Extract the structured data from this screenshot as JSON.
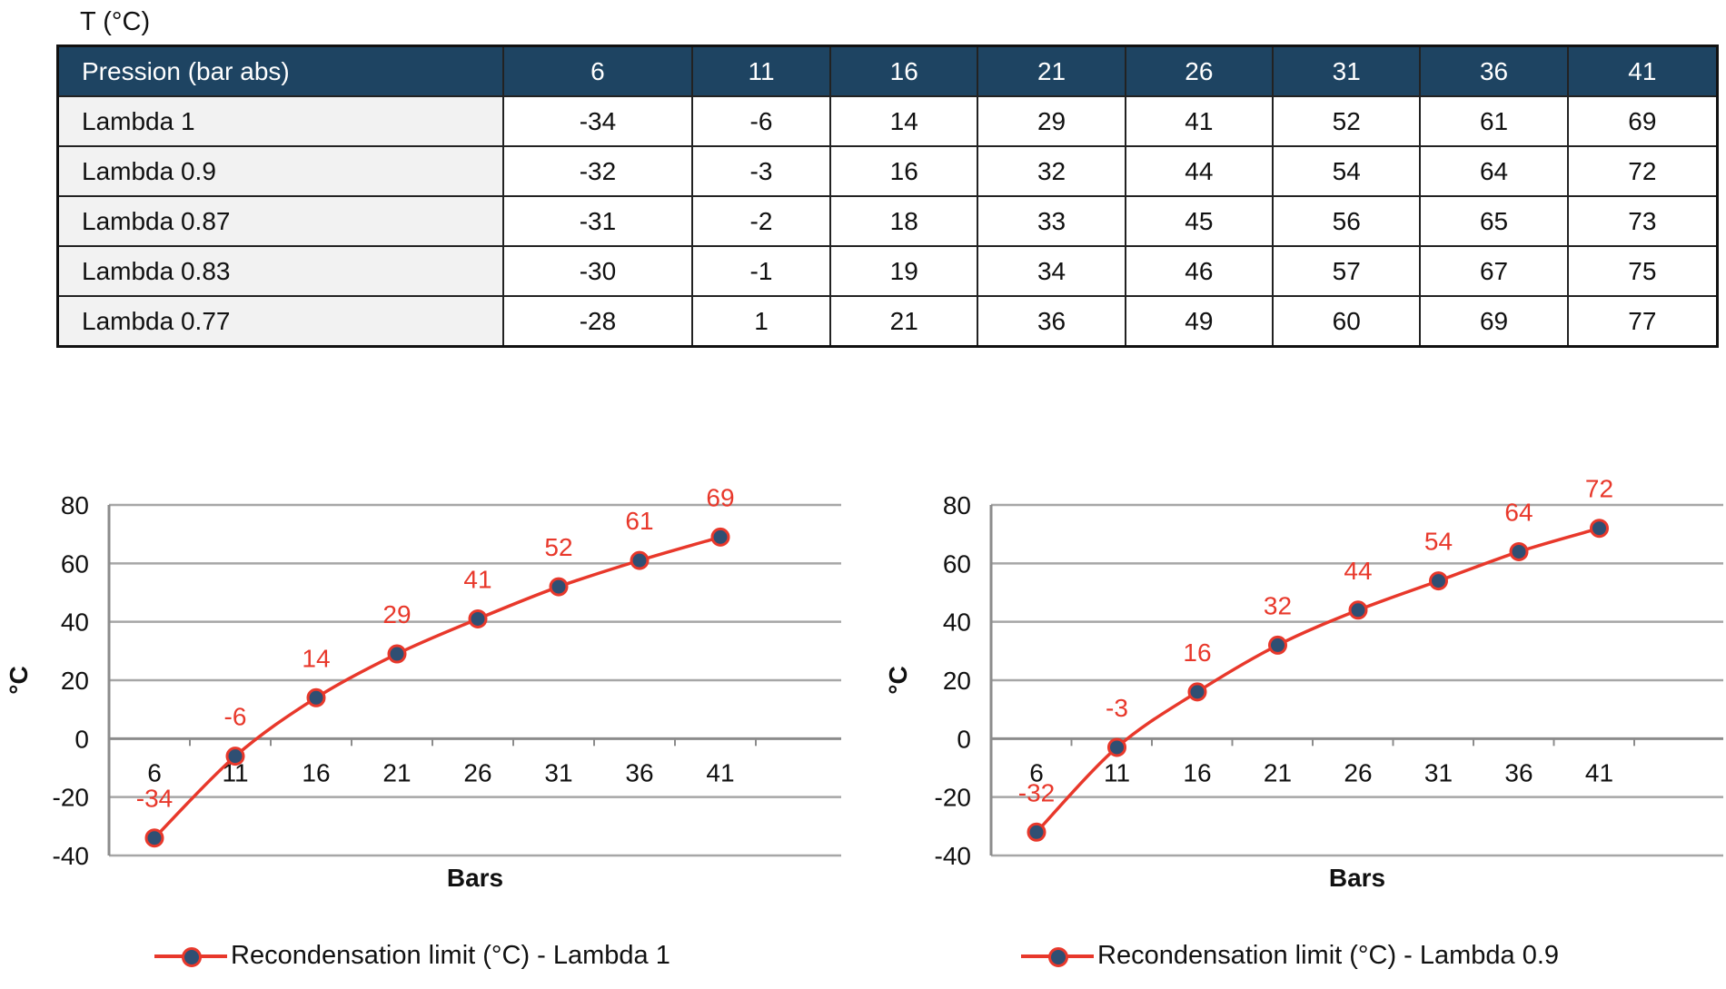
{
  "unit_label": "T (°C)",
  "table": {
    "header": [
      "Pression (bar abs)",
      "6",
      "11",
      "16",
      "21",
      "26",
      "31",
      "36",
      "41"
    ],
    "rows": [
      [
        "Lambda 1",
        "-34",
        "-6",
        "14",
        "29",
        "41",
        "52",
        "61",
        "69"
      ],
      [
        "Lambda 0.9",
        "-32",
        "-3",
        "16",
        "32",
        "44",
        "54",
        "64",
        "72"
      ],
      [
        "Lambda 0.87",
        "-31",
        "-2",
        "18",
        "33",
        "45",
        "56",
        "65",
        "73"
      ],
      [
        "Lambda 0.83",
        "-30",
        "-1",
        "19",
        "34",
        "46",
        "57",
        "67",
        "75"
      ],
      [
        "Lambda 0.77",
        "-28",
        "1",
        "21",
        "36",
        "49",
        "60",
        "69",
        "77"
      ]
    ]
  },
  "colors": {
    "header_bg": "#1e4462",
    "series_line": "#e8382b",
    "marker_fill": "#2f4f73",
    "grid": "#a6a6a6"
  },
  "chart_data": [
    {
      "type": "line",
      "categories": [
        "6",
        "11",
        "16",
        "21",
        "26",
        "31",
        "36",
        "41"
      ],
      "series": [
        {
          "name": "Recondensation limit (°C) - Lambda 1",
          "values": [
            -34,
            -6,
            14,
            29,
            41,
            52,
            61,
            69
          ]
        }
      ],
      "xlabel": "Bars",
      "ylabel": "°C",
      "ylim": [
        -40,
        80
      ],
      "yticks": [
        -40,
        -20,
        0,
        20,
        40,
        60,
        80
      ],
      "data_labels": true,
      "grid": true,
      "legend_position": "bottom"
    },
    {
      "type": "line",
      "categories": [
        "6",
        "11",
        "16",
        "21",
        "26",
        "31",
        "36",
        "41"
      ],
      "series": [
        {
          "name": "Recondensation limit (°C) - Lambda 0.9",
          "values": [
            -32,
            -3,
            16,
            32,
            44,
            54,
            64,
            72
          ]
        }
      ],
      "xlabel": "Bars",
      "ylabel": "°C",
      "ylim": [
        -40,
        80
      ],
      "yticks": [
        -40,
        -20,
        0,
        20,
        40,
        60,
        80
      ],
      "data_labels": true,
      "grid": true,
      "legend_position": "bottom"
    }
  ]
}
